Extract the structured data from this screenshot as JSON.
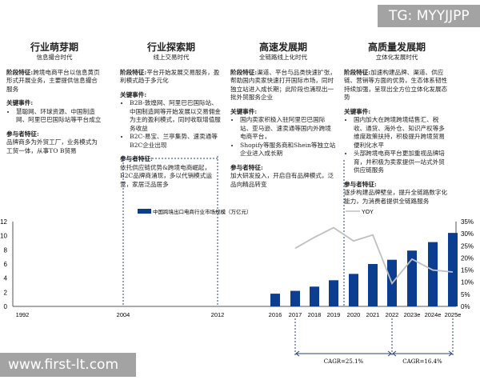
{
  "watermark_top": "TG: MYYJJPP",
  "watermark_bottom": "www.first-lt.com",
  "stages": [
    {
      "title": "行业萌芽期",
      "subtitle": "信息撮合时代",
      "feature_label": "阶段特征:",
      "feature": "跨境电商平台以信息黄页形式开展业务，主要提供信息撮合服务",
      "events_label": "关键事件:",
      "events": [
        "慧聪网、环球资源、中国制造网、阿里巴巴国际站等平台成立"
      ],
      "participants_label": "参与者特征:",
      "participants": "品牌商多为外贸工厂，业务模式为工贸一体，从事TO B贸易"
    },
    {
      "title": "行业探索期",
      "subtitle": "线上交易时代",
      "feature_label": "阶段特征:",
      "feature": "平台开始发展交易服务，盈利模式趋于多元化",
      "events_label": "关键事件:",
      "events": [
        "B2B-敦煌网、阿里巴巴国际站、中国制造网等开始发展以交易佣金为主的盈利模式，同时收取增值服务收益",
        "B2C-易宝、兰亭集势、速卖通等B2C企业出现"
      ],
      "participants_label": "参与者特征:",
      "participants": "依托供应链优势&跨境电商崛起，B2C品牌商涌现，多以代销模式运营，家居泛品居多"
    },
    {
      "title": "高速发展期",
      "subtitle": "全链路线上化时代",
      "feature_label": "阶段特征:",
      "feature": "渠道、平台与品类快速扩张，帮助国内卖家快速打开国际市场，同时独立站进入成长期；此阶段也涌现出一批外贸服务企业",
      "events_label": "关键事件:",
      "events": [
        "国内卖家积极入驻阿里巴巴国际站、亚马逊、速卖通等国内外跨境电商平台，",
        "Shopify等服务商和Shein等独立站企业进入成长期"
      ],
      "participants_label": "参与者特征:",
      "participants": "加大研发投入，开启自有品牌模式，泛品向精品转变"
    },
    {
      "title": "高质量发展期",
      "subtitle": "立体化发展时代",
      "feature_label": "阶段特征:",
      "feature": "加速构建品牌、渠道、供应链、营销等方面的优势，生态体系韧性持续加强，呈现出全方位立体化发展态势",
      "events_label": "关键事件:",
      "events": [
        "国内加大在跨境跨境结售汇、税收、通货、海外仓、知识产权等多维度政策扶持，积极提升跨境贸易便利化水平",
        "头部跨境电商平台更加重视品牌培育，并积极为卖家提供一站式外贸供应链服务"
      ],
      "participants_label": "参与者特征:",
      "participants": "逐步构建品牌壁垒，提升全链路数字化能力，为消费者提供全链路服务"
    }
  ],
  "chart_data": {
    "type": "bar+line",
    "categories": [
      "1992",
      "2004",
      "2012",
      "2016",
      "2017",
      "2018",
      "2019",
      "2020",
      "2021",
      "2022",
      "2023e",
      "2024e",
      "2025e"
    ],
    "series": [
      {
        "name": "中国跨境出口电商行业市场规模（万亿元）",
        "type": "bar",
        "axis": "left",
        "color": "#0b3d91",
        "values": [
          null,
          null,
          null,
          1.8,
          2.2,
          2.8,
          3.7,
          4.6,
          6.0,
          6.6,
          7.9,
          9.1,
          10.4
        ]
      },
      {
        "name": "YOY",
        "type": "line",
        "axis": "right",
        "color": "#c0c0c0",
        "values": [
          null,
          null,
          null,
          null,
          24,
          28.5,
          32.5,
          27,
          29.5,
          9.5,
          19.5,
          15,
          14.2
        ]
      }
    ],
    "ylim_left": [
      0,
      12
    ],
    "yticks_left": [
      "0",
      "2",
      "4",
      "6",
      "8",
      "10",
      "12"
    ],
    "ylim_right": [
      0,
      35
    ],
    "yticks_right": [
      "0%",
      "5%",
      "10%",
      "15%",
      "20%",
      "25%",
      "30%",
      "35%"
    ],
    "annotations": [
      {
        "from": "2017",
        "to": "2022",
        "text": "CAGR=25.1%"
      },
      {
        "from": "2022",
        "to": "2025e",
        "text": "CAGR=16.4%"
      }
    ],
    "legend": "top",
    "grid": false
  }
}
